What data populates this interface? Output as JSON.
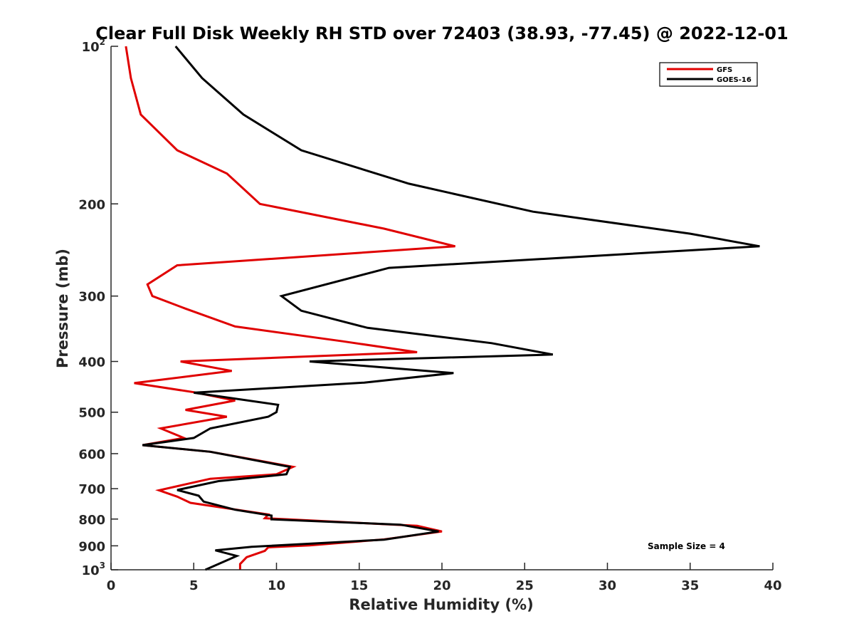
{
  "chart_data": {
    "type": "line",
    "title": "Clear Full Disk Weekly RH STD over 72403 (38.93, -77.45) @ 2022-12-01",
    "xlabel": "Relative Humidity (%)",
    "ylabel": "Pressure (mb)",
    "xlim": [
      0,
      40
    ],
    "ylim": [
      100,
      1000
    ],
    "y_scale": "log",
    "y_reversed": true,
    "x_ticks": [
      0,
      5,
      10,
      15,
      20,
      25,
      30,
      35,
      40
    ],
    "x_tick_labels": [
      "0",
      "5",
      "10",
      "15",
      "20",
      "25",
      "30",
      "35",
      "40"
    ],
    "y_ticks": [
      100,
      200,
      300,
      400,
      500,
      600,
      700,
      800,
      900,
      1000
    ],
    "y_tick_labels": [
      {
        "base": "10",
        "sup": "2"
      },
      {
        "base": "200",
        "sup": ""
      },
      {
        "base": "300",
        "sup": ""
      },
      {
        "base": "400",
        "sup": ""
      },
      {
        "base": "500",
        "sup": ""
      },
      {
        "base": "600",
        "sup": ""
      },
      {
        "base": "700",
        "sup": ""
      },
      {
        "base": "800",
        "sup": ""
      },
      {
        "base": "900",
        "sup": ""
      },
      {
        "base": "10",
        "sup": "3"
      }
    ],
    "grid": false,
    "legend_position": "top-right",
    "annotation": "Sample Size = 4",
    "series": [
      {
        "name": "GFS",
        "color": "#e00000",
        "points": [
          [
            0.9,
            100
          ],
          [
            1.2,
            115
          ],
          [
            1.8,
            135
          ],
          [
            4.0,
            158
          ],
          [
            7.0,
            175
          ],
          [
            9.0,
            200
          ],
          [
            16.5,
            223
          ],
          [
            20.8,
            241
          ],
          [
            4.0,
            262
          ],
          [
            2.2,
            285
          ],
          [
            2.5,
            300
          ],
          [
            4.5,
            317
          ],
          [
            7.5,
            343
          ],
          [
            14.0,
            366
          ],
          [
            18.5,
            384
          ],
          [
            4.2,
            400
          ],
          [
            7.3,
            417
          ],
          [
            1.4,
            440
          ],
          [
            5.0,
            458
          ],
          [
            7.5,
            475
          ],
          [
            4.5,
            495
          ],
          [
            7.0,
            510
          ],
          [
            3.0,
            537
          ],
          [
            4.4,
            560
          ],
          [
            1.9,
            578
          ],
          [
            6.0,
            595
          ],
          [
            11.0,
            636
          ],
          [
            10.0,
            657
          ],
          [
            6.0,
            670
          ],
          [
            2.9,
            705
          ],
          [
            4.0,
            725
          ],
          [
            4.8,
            745
          ],
          [
            9.5,
            784
          ],
          [
            9.3,
            797
          ],
          [
            18.5,
            824
          ],
          [
            20.0,
            845
          ],
          [
            16.5,
            875
          ],
          [
            12.0,
            898
          ],
          [
            9.5,
            906
          ],
          [
            9.3,
            920
          ],
          [
            8.2,
            946
          ],
          [
            7.8,
            975
          ],
          [
            7.8,
            1000
          ]
        ]
      },
      {
        "name": "GOES-16",
        "color": "#000000",
        "points": [
          [
            3.9,
            100
          ],
          [
            5.5,
            115
          ],
          [
            8.0,
            135
          ],
          [
            11.5,
            158
          ],
          [
            18.0,
            183
          ],
          [
            25.5,
            207
          ],
          [
            35.0,
            228
          ],
          [
            39.2,
            241
          ],
          [
            16.8,
            265
          ],
          [
            10.3,
            300
          ],
          [
            11.5,
            320
          ],
          [
            15.5,
            345
          ],
          [
            23.0,
            369
          ],
          [
            26.7,
            388
          ],
          [
            12.0,
            400
          ],
          [
            20.7,
            421
          ],
          [
            15.3,
            439
          ],
          [
            5.0,
            459
          ],
          [
            10.1,
            484
          ],
          [
            10.0,
            500
          ],
          [
            9.5,
            510
          ],
          [
            6.0,
            537
          ],
          [
            5.0,
            560
          ],
          [
            1.9,
            578
          ],
          [
            6.0,
            595
          ],
          [
            10.8,
            636
          ],
          [
            10.6,
            657
          ],
          [
            6.5,
            677
          ],
          [
            4.0,
            704
          ],
          [
            5.3,
            722
          ],
          [
            5.6,
            741
          ],
          [
            7.5,
            768
          ],
          [
            9.7,
            788
          ],
          [
            9.7,
            801
          ],
          [
            17.5,
            820
          ],
          [
            19.8,
            845
          ],
          [
            16.5,
            876
          ],
          [
            8.5,
            904
          ],
          [
            6.3,
            918
          ],
          [
            7.6,
            941
          ],
          [
            5.7,
            1000
          ]
        ]
      }
    ]
  }
}
